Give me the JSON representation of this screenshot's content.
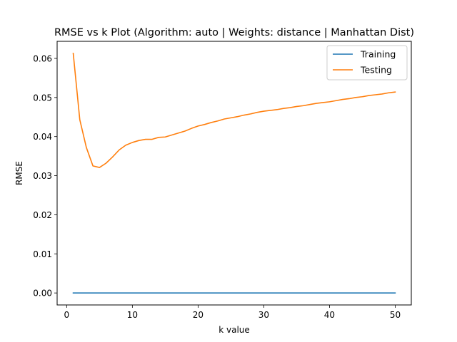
{
  "chart_data": {
    "type": "line",
    "title": "RMSE vs k Plot (Algorithm: auto | Weights: distance | Manhattan Dist)",
    "xlabel": "k value",
    "ylabel": "RMSE",
    "xlim": [
      -1.45,
      52.45
    ],
    "ylim": [
      -0.00307,
      0.06437
    ],
    "xticks": [
      0,
      10,
      20,
      30,
      40,
      50
    ],
    "xtick_labels": [
      "0",
      "10",
      "20",
      "30",
      "40",
      "50"
    ],
    "yticks": [
      0.0,
      0.01,
      0.02,
      0.03,
      0.04,
      0.05,
      0.06
    ],
    "ytick_labels": [
      "0.00",
      "0.01",
      "0.02",
      "0.03",
      "0.04",
      "0.05",
      "0.06"
    ],
    "grid": false,
    "legend_position": "top-right",
    "x": [
      1,
      2,
      3,
      4,
      5,
      6,
      7,
      8,
      9,
      10,
      11,
      12,
      13,
      14,
      15,
      16,
      17,
      18,
      19,
      20,
      21,
      22,
      23,
      24,
      25,
      26,
      27,
      28,
      29,
      30,
      31,
      32,
      33,
      34,
      35,
      36,
      37,
      38,
      39,
      40,
      41,
      42,
      43,
      44,
      45,
      46,
      47,
      48,
      49,
      50
    ],
    "series": [
      {
        "name": "Training",
        "color": "#1f77b4",
        "values": [
          0,
          0,
          0,
          0,
          0,
          0,
          0,
          0,
          0,
          0,
          0,
          0,
          0,
          0,
          0,
          0,
          0,
          0,
          0,
          0,
          0,
          0,
          0,
          0,
          0,
          0,
          0,
          0,
          0,
          0,
          0,
          0,
          0,
          0,
          0,
          0,
          0,
          0,
          0,
          0,
          0,
          0,
          0,
          0,
          0,
          0,
          0,
          0,
          0,
          0
        ]
      },
      {
        "name": "Testing",
        "color": "#ff7f0e",
        "values": [
          0.0613,
          0.0443,
          0.0372,
          0.0325,
          0.0321,
          0.0332,
          0.0348,
          0.0366,
          0.0378,
          0.0385,
          0.039,
          0.0393,
          0.0393,
          0.0398,
          0.0399,
          0.0404,
          0.0409,
          0.0414,
          0.0421,
          0.0427,
          0.0431,
          0.0436,
          0.044,
          0.0445,
          0.0448,
          0.0451,
          0.0455,
          0.0458,
          0.0462,
          0.0465,
          0.0467,
          0.0469,
          0.0472,
          0.0474,
          0.0477,
          0.0479,
          0.0482,
          0.0485,
          0.0487,
          0.0489,
          0.0492,
          0.0495,
          0.0497,
          0.05,
          0.0502,
          0.0505,
          0.0507,
          0.0509,
          0.0512,
          0.0514
        ]
      }
    ]
  }
}
